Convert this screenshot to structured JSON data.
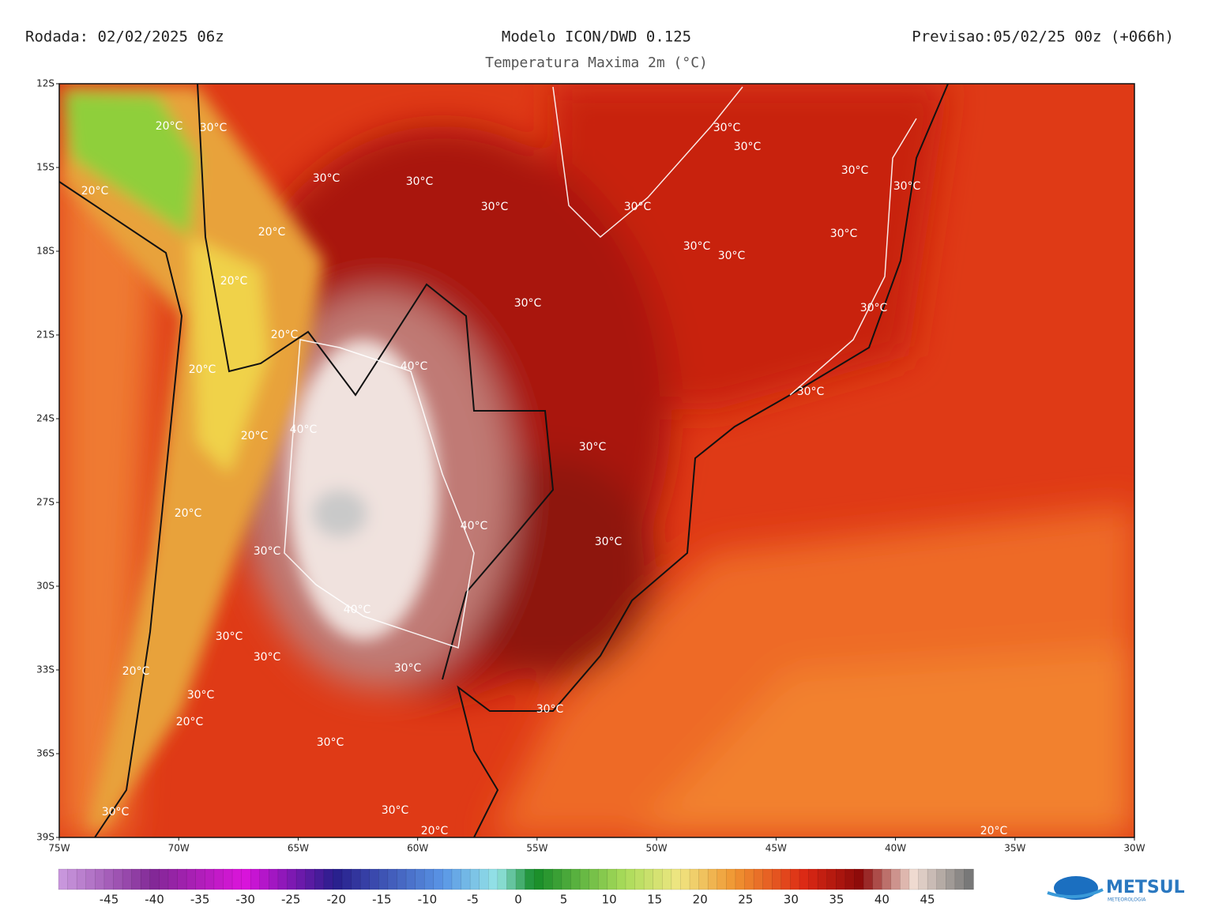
{
  "header": {
    "run": "Rodada: 02/02/2025 06z",
    "model": "Modelo ICON/DWD 0.125",
    "subtitle": "Temperatura Maxima 2m (°C)",
    "forecast": "Previsao:05/02/25 00z (+066h)"
  },
  "map": {
    "lat_labels": [
      "12S",
      "15S",
      "18S",
      "21S",
      "24S",
      "27S",
      "30S",
      "33S",
      "36S",
      "39S"
    ],
    "lon_labels": [
      "75W",
      "70W",
      "65W",
      "60W",
      "55W",
      "50W",
      "45W",
      "40W",
      "35W",
      "30W"
    ],
    "contour_labels": [
      "20°C",
      "30°C",
      "20°C",
      "30°C",
      "30°C",
      "30°C",
      "30°C",
      "30°C",
      "30°C",
      "30°C",
      "30°C",
      "30°C",
      "30°C",
      "30°C",
      "20°C",
      "20°C",
      "30°C",
      "30°C",
      "20°C",
      "40°C",
      "20°C",
      "30°C",
      "40°C",
      "20°C",
      "30°C",
      "20°C",
      "40°C",
      "30°C",
      "30°C",
      "40°C",
      "30°C",
      "30°C",
      "30°C",
      "20°C",
      "30°C",
      "20°C",
      "30°C",
      "30°C",
      "30°C",
      "30°C",
      "20°C",
      "20°C"
    ]
  },
  "colorbar": {
    "labels": [
      "-45",
      "-40",
      "-35",
      "-30",
      "-25",
      "-20",
      "-15",
      "-10",
      "-5",
      "0",
      "5",
      "10",
      "15",
      "20",
      "25",
      "30",
      "35",
      "40",
      "45"
    ]
  },
  "logo": {
    "name": "METSUL",
    "tagline": "METEOROLOGIA"
  }
}
